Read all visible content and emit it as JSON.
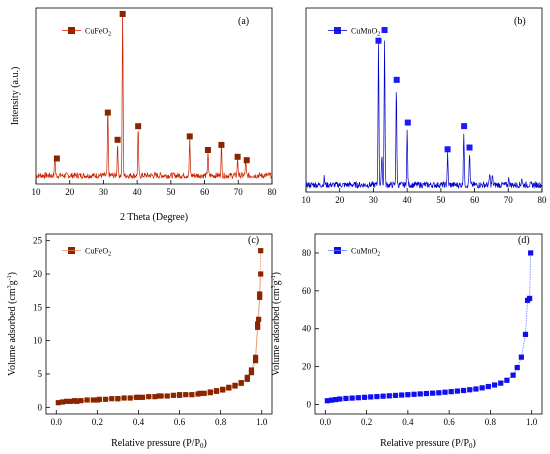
{
  "chart_data": [
    {
      "id": "a",
      "type": "line",
      "panel_label": "(a)",
      "xlabel": "2 Theta (Degree)",
      "ylabel": "Intensity (a.u.)",
      "xlim": [
        10,
        80
      ],
      "xticks": [
        "10",
        "20",
        "30",
        "40",
        "50",
        "60",
        "70",
        "80"
      ],
      "color": "#cc2200",
      "marker_color": "#8b2500",
      "legend": "CuFeO",
      "legend_sub": "2",
      "baseline": 0.05,
      "series": [
        {
          "peaks": [
            {
              "x": 15.6,
              "h": 0.12
            },
            {
              "x": 31.3,
              "h": 0.38
            },
            {
              "x": 34.2,
              "h": 0.19
            },
            {
              "x": 35.7,
              "h": 0.97
            },
            {
              "x": 40.3,
              "h": 0.27
            },
            {
              "x": 55.6,
              "h": 0.21
            },
            {
              "x": 61.0,
              "h": 0.14
            },
            {
              "x": 65.0,
              "h": 0.17
            },
            {
              "x": 69.8,
              "h": 0.1
            },
            {
              "x": 72.2,
              "h": 0.09
            }
          ],
          "markers": [
            16.2,
            31.3,
            34.2,
            35.7,
            40.3,
            55.6,
            61.0,
            65.0,
            69.8,
            72.5
          ],
          "marker_y": [
            0.15,
            0.42,
            0.26,
            1.0,
            0.34,
            0.28,
            0.2,
            0.23,
            0.16,
            0.14
          ]
        }
      ]
    },
    {
      "id": "b",
      "type": "line",
      "panel_label": "(b)",
      "xlabel": "",
      "ylabel": "",
      "xlim": [
        10,
        80
      ],
      "xticks": [
        "10",
        "20",
        "30",
        "40",
        "50",
        "60",
        "70",
        "80"
      ],
      "color": "#0000cc",
      "marker_color": "#1a1aff",
      "legend": "CuMnO",
      "legend_sub": "2",
      "baseline": 0.04,
      "series": [
        {
          "peaks": [
            {
              "x": 15.4,
              "h": 0.04
            },
            {
              "x": 31.5,
              "h": 0.8
            },
            {
              "x": 32.5,
              "h": 0.18
            },
            {
              "x": 33.3,
              "h": 0.82
            },
            {
              "x": 36.8,
              "h": 0.55
            },
            {
              "x": 40.0,
              "h": 0.3
            },
            {
              "x": 52.0,
              "h": 0.17
            },
            {
              "x": 56.8,
              "h": 0.3
            },
            {
              "x": 58.5,
              "h": 0.18
            },
            {
              "x": 64.5,
              "h": 0.06
            },
            {
              "x": 65.3,
              "h": 0.05
            },
            {
              "x": 70.2,
              "h": 0.04
            },
            {
              "x": 74.0,
              "h": 0.04
            }
          ],
          "markers": [
            31.5,
            33.3,
            36.9,
            40.2,
            52.0,
            56.9,
            58.5
          ],
          "marker_y": [
            0.85,
            0.91,
            0.63,
            0.39,
            0.24,
            0.37,
            0.25
          ]
        }
      ]
    },
    {
      "id": "c",
      "type": "scatter",
      "panel_label": "(c)",
      "xlabel": "Relative pressure (P/P",
      "xlabel_sub": "0",
      "xlabel_end": ")",
      "ylabel": "Volume adsorbed (cm",
      "ylabel_sup": "3",
      "ylabel_mid": "g",
      "ylabel_sup2": "-1",
      "ylabel_end": ")",
      "xlim": [
        -0.05,
        1.05
      ],
      "ylim": [
        -1,
        26
      ],
      "xticks": [
        0.0,
        0.2,
        0.4,
        0.6,
        0.8,
        1.0
      ],
      "xtick_labels": [
        "0.0",
        "0.2",
        "0.4",
        "0.6",
        "0.8",
        "1.0"
      ],
      "yticks": [
        0,
        5,
        10,
        15,
        20,
        25
      ],
      "ytick_labels": [
        "0",
        "5",
        "10",
        "15",
        "20",
        "25"
      ],
      "color": "#8b2500",
      "line_color": "#e88a60",
      "legend": "CuFeO",
      "legend_sub": "2",
      "series": [
        {
          "x": [
            0.01,
            0.03,
            0.05,
            0.07,
            0.09,
            0.12,
            0.15,
            0.18,
            0.21,
            0.24,
            0.27,
            0.3,
            0.33,
            0.36,
            0.39,
            0.42,
            0.45,
            0.48,
            0.51,
            0.54,
            0.57,
            0.6,
            0.63,
            0.66,
            0.69,
            0.72,
            0.75,
            0.78,
            0.81,
            0.84,
            0.87,
            0.9,
            0.93,
            0.95,
            0.97,
            0.98,
            0.985,
            0.99,
            0.995
          ],
          "y": [
            0.7,
            0.8,
            0.9,
            0.9,
            1.0,
            1.0,
            1.1,
            1.1,
            1.2,
            1.2,
            1.3,
            1.3,
            1.4,
            1.4,
            1.5,
            1.5,
            1.6,
            1.6,
            1.7,
            1.7,
            1.8,
            1.8,
            1.9,
            1.9,
            2.0,
            2.1,
            2.2,
            2.4,
            2.6,
            2.9,
            3.2,
            3.6,
            4.2,
            5.2,
            7.0,
            12.0,
            13.2,
            16.5,
            20.0
          ]
        },
        {
          "x": [
            0.995,
            0.99,
            0.98,
            0.97,
            0.95,
            0.93,
            0.9,
            0.87,
            0.84,
            0.81,
            0.78,
            0.75,
            0.7,
            0.6,
            0.5,
            0.4,
            0.3,
            0.2,
            0.1
          ],
          "y": [
            23.5,
            17.0,
            12.5,
            7.5,
            5.6,
            4.5,
            3.7,
            3.3,
            3.0,
            2.7,
            2.5,
            2.3,
            2.1,
            1.9,
            1.7,
            1.5,
            1.3,
            1.1,
            0.9
          ]
        }
      ]
    },
    {
      "id": "d",
      "type": "scatter",
      "panel_label": "(d)",
      "xlabel": "Relative pressure (P/P",
      "xlabel_sub": "0",
      "xlabel_end": ")",
      "ylabel": "Volume adsorbed (cm",
      "ylabel_sup": "3",
      "ylabel_mid": "g",
      "ylabel_sup2": "-1",
      "ylabel_end": ")",
      "xlim": [
        -0.05,
        1.05
      ],
      "ylim": [
        -5,
        90
      ],
      "xticks": [
        0.0,
        0.2,
        0.4,
        0.6,
        0.8,
        1.0
      ],
      "xtick_labels": [
        "0.0",
        "0.2",
        "0.4",
        "0.6",
        "0.8",
        "1.0"
      ],
      "yticks": [
        0,
        20,
        40,
        60,
        80
      ],
      "ytick_labels": [
        "0",
        "20",
        "40",
        "60",
        "80"
      ],
      "color": "#1010ee",
      "line_color": "#6a7cff",
      "legend": "CuMnO",
      "legend_sub": "2",
      "series": [
        {
          "x": [
            0.01,
            0.03,
            0.05,
            0.07,
            0.1,
            0.13,
            0.16,
            0.19,
            0.22,
            0.25,
            0.28,
            0.31,
            0.34,
            0.37,
            0.4,
            0.43,
            0.46,
            0.49,
            0.52,
            0.55,
            0.58,
            0.61,
            0.64,
            0.67,
            0.7,
            0.73,
            0.76,
            0.79,
            0.82,
            0.85,
            0.88,
            0.91,
            0.93,
            0.95,
            0.97,
            0.98,
            0.99,
            0.995
          ],
          "y": [
            2.0,
            2.3,
            2.6,
            2.9,
            3.2,
            3.4,
            3.6,
            3.8,
            4.0,
            4.2,
            4.4,
            4.6,
            4.8,
            5.0,
            5.2,
            5.4,
            5.6,
            5.8,
            6.0,
            6.2,
            6.5,
            6.8,
            7.1,
            7.4,
            7.8,
            8.2,
            8.8,
            9.5,
            10.3,
            11.3,
            12.8,
            15.5,
            19.5,
            25.0,
            37.0,
            55.0,
            56.0,
            80.0
          ]
        }
      ]
    }
  ]
}
